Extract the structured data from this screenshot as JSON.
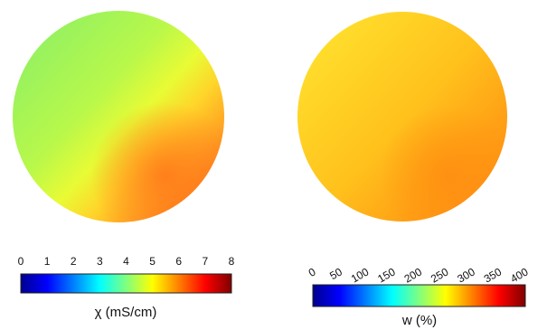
{
  "chart_data": [
    {
      "type": "heatmap",
      "shape": "circle",
      "title": "",
      "colorbar": {
        "label": "χ (mS/cm)",
        "ticks": [
          0,
          1,
          2,
          3,
          4,
          5,
          6,
          7,
          8
        ],
        "tick_labels": [
          "0",
          "1",
          "2",
          "3",
          "4",
          "5",
          "6",
          "7",
          "8"
        ],
        "range": [
          0,
          8
        ],
        "colormap": "jet",
        "tick_orientation": "horizontal",
        "position": "below"
      },
      "value_range_estimate": [
        3.3,
        6.3
      ],
      "gradient": "increases from upper-left (~3.5) to lower-right (~6.3)",
      "region_colors": {
        "upper-left": "#98f25e",
        "center": "#d2ff3f",
        "lower-right": "#ff8a1f"
      }
    },
    {
      "type": "heatmap",
      "shape": "circle",
      "title": "",
      "colorbar": {
        "label": "w (%)",
        "ticks": [
          0,
          50,
          100,
          150,
          200,
          250,
          300,
          350,
          400
        ],
        "tick_labels": [
          "0",
          "50",
          "100",
          "150",
          "200",
          "250",
          "300",
          "350",
          "400"
        ],
        "range": [
          0,
          400
        ],
        "colormap": "jet",
        "tick_orientation": "rotated",
        "position": "below"
      },
      "value_range_estimate": [
        240,
        320
      ],
      "gradient": "increases from upper-left (~250) to lower-right (~315)",
      "region_colors": {
        "upper-left": "#ffd526",
        "center": "#ffbc18",
        "lower-right": "#ff9614"
      }
    }
  ]
}
